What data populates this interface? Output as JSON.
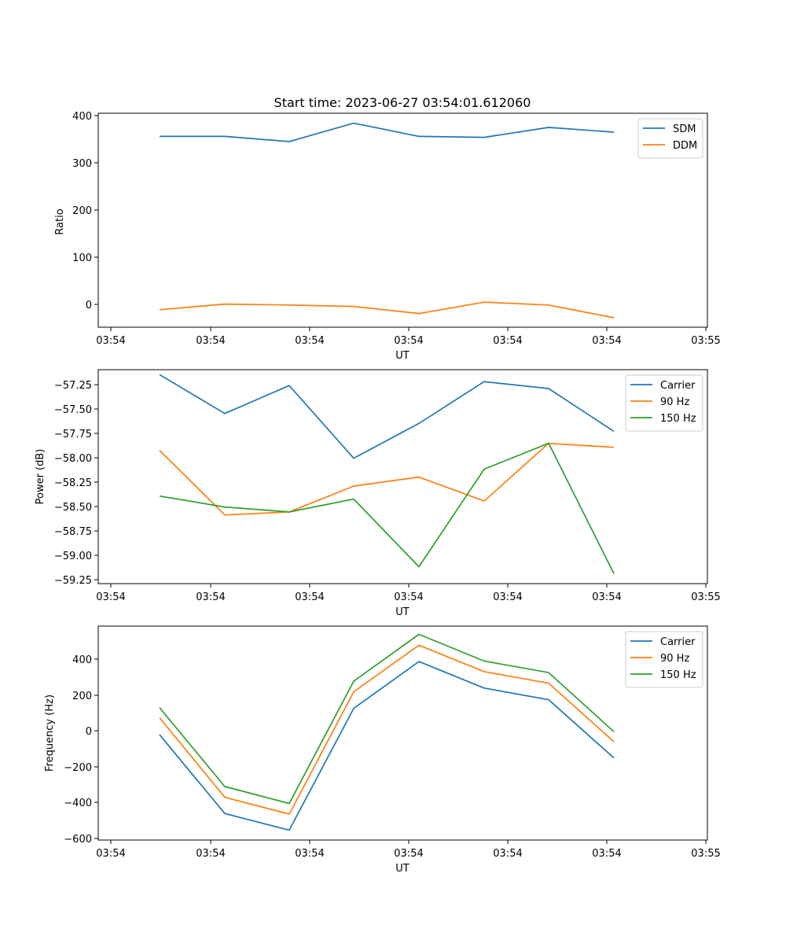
{
  "colors": {
    "blue": "#1f77b4",
    "orange": "#ff7f0e",
    "green": "#2ca02c"
  },
  "chart_data": [
    {
      "type": "line",
      "title": "Start time: 2023-06-27 03:54:01.612060",
      "xlabel": "UT",
      "ylabel": "Ratio",
      "xticks": [
        "03:54",
        "03:54",
        "03:54",
        "03:54",
        "03:54",
        "03:54",
        "03:54",
        "03:55"
      ],
      "yticks": [
        400,
        300,
        200,
        100,
        0
      ],
      "ylim": [
        -47,
        406
      ],
      "legend": "top-right",
      "series": [
        {
          "name": "SDM",
          "color": "#1f77b4",
          "values": [
            357,
            357,
            346,
            385,
            357,
            355,
            376,
            366
          ]
        },
        {
          "name": "DDM",
          "color": "#ff7f0e",
          "values": [
            -10,
            2,
            0,
            -3,
            -18,
            6,
            0,
            -27
          ]
        }
      ]
    },
    {
      "type": "line",
      "title": "",
      "xlabel": "UT",
      "ylabel": "Power (dB)",
      "xticks": [
        "03:54",
        "03:54",
        "03:54",
        "03:54",
        "03:54",
        "03:54",
        "03:54",
        "03:55"
      ],
      "yticks": [
        "−57.25",
        "−57.50",
        "−57.75",
        "−58.00",
        "−58.25",
        "−58.50",
        "−58.75",
        "−59.00",
        "−59.25"
      ],
      "ylim": [
        -59.29,
        -57.14
      ],
      "legend": "top-right",
      "series": [
        {
          "name": "Carrier",
          "color": "#1f77b4",
          "values": [
            -57.19,
            -57.58,
            -57.3,
            -58.03,
            -57.68,
            -57.26,
            -57.33,
            -57.76
          ]
        },
        {
          "name": "90 Hz",
          "color": "#ff7f0e",
          "values": [
            -57.95,
            -58.6,
            -58.57,
            -58.31,
            -58.22,
            -58.46,
            -57.88,
            -57.92
          ]
        },
        {
          "name": "150 Hz",
          "color": "#2ca02c",
          "values": [
            -58.41,
            -58.52,
            -58.57,
            -58.44,
            -59.12,
            -58.14,
            -57.88,
            -59.19
          ]
        }
      ]
    },
    {
      "type": "line",
      "title": "",
      "xlabel": "UT",
      "ylabel": "Frequency (Hz)",
      "xticks": [
        "03:54",
        "03:54",
        "03:54",
        "03:54",
        "03:54",
        "03:54",
        "03:54",
        "03:55"
      ],
      "yticks": [
        "400",
        "200",
        "0",
        "−200",
        "−400",
        "−600"
      ],
      "ylim": [
        -610,
        578
      ],
      "legend": "top-right",
      "series": [
        {
          "name": "Carrier",
          "color": "#1f77b4",
          "values": [
            -25,
            -463,
            -555,
            121,
            381,
            234,
            169,
            -154
          ]
        },
        {
          "name": "90 Hz",
          "color": "#ff7f0e",
          "values": [
            69,
            -373,
            -466,
            213,
            472,
            325,
            261,
            -64
          ]
        },
        {
          "name": "150 Hz",
          "color": "#2ca02c",
          "values": [
            125,
            -313,
            -407,
            272,
            532,
            384,
            320,
            -8
          ]
        }
      ]
    }
  ]
}
